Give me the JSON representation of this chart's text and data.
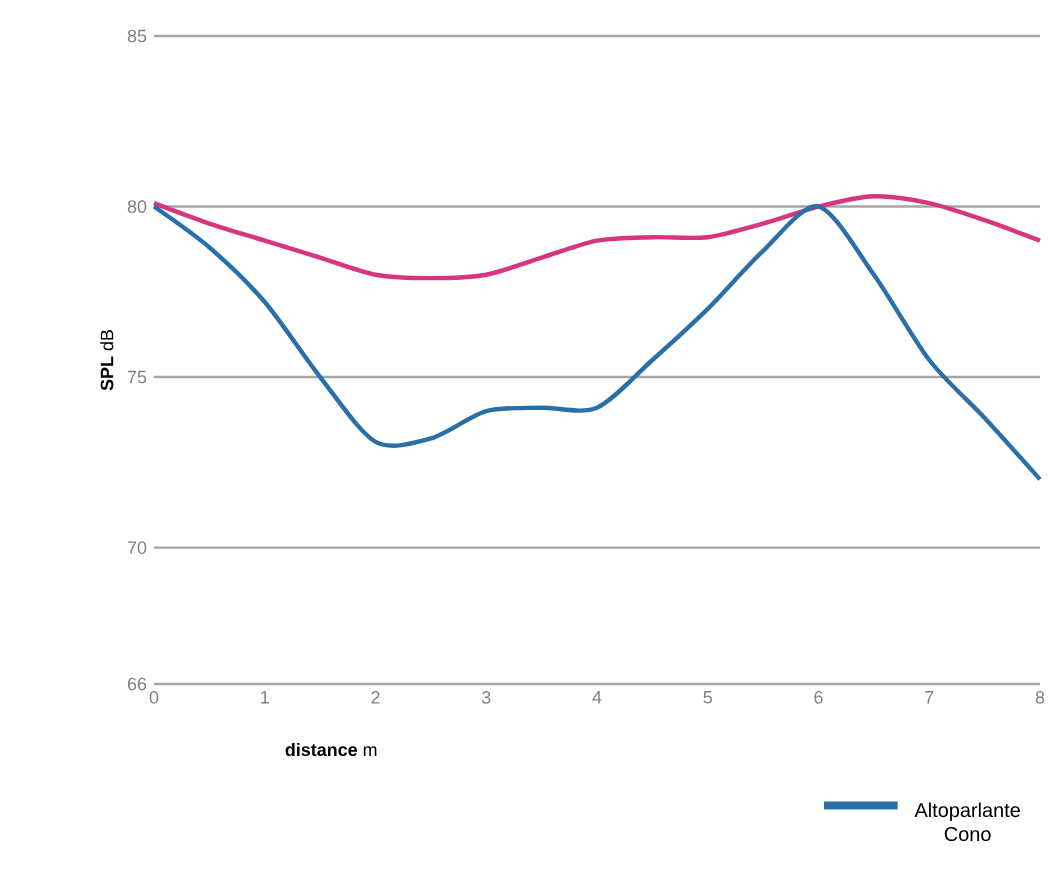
{
  "chart_data": {
    "type": "line",
    "xlabel": "**distance** m",
    "ylabel": "**SPL** dB",
    "x": [
      0,
      0.5,
      1,
      1.5,
      2,
      2.5,
      3,
      3.5,
      4,
      4.5,
      5,
      5.5,
      6,
      6.5,
      7,
      7.5,
      8
    ],
    "series": [
      {
        "color": "#d6357f",
        "values": [
          80.1,
          79.5,
          79,
          78.5,
          78,
          77.9,
          78,
          78.5,
          79,
          79.1,
          79.1,
          79.5,
          80,
          80.3,
          80.1,
          79.6,
          79
        ]
      },
      {
        "name": "Altoparlante Cono",
        "color": "#2a6fa8",
        "values": [
          80,
          78.8,
          77.2,
          75,
          73.1,
          73.2,
          74,
          74.1,
          74.1,
          75.5,
          77,
          78.7,
          80,
          78,
          75.5,
          73.8,
          72
        ]
      }
    ],
    "xlim": [
      0,
      8
    ],
    "xticks": [
      0,
      1,
      2,
      3,
      4,
      5,
      6,
      7,
      8
    ],
    "ylim": [
      66,
      85
    ],
    "yticks": [
      66,
      70,
      75,
      80,
      85
    ],
    "grid": "y",
    "legend": "bottom",
    "marker": "none",
    "line_style": "solid"
  }
}
